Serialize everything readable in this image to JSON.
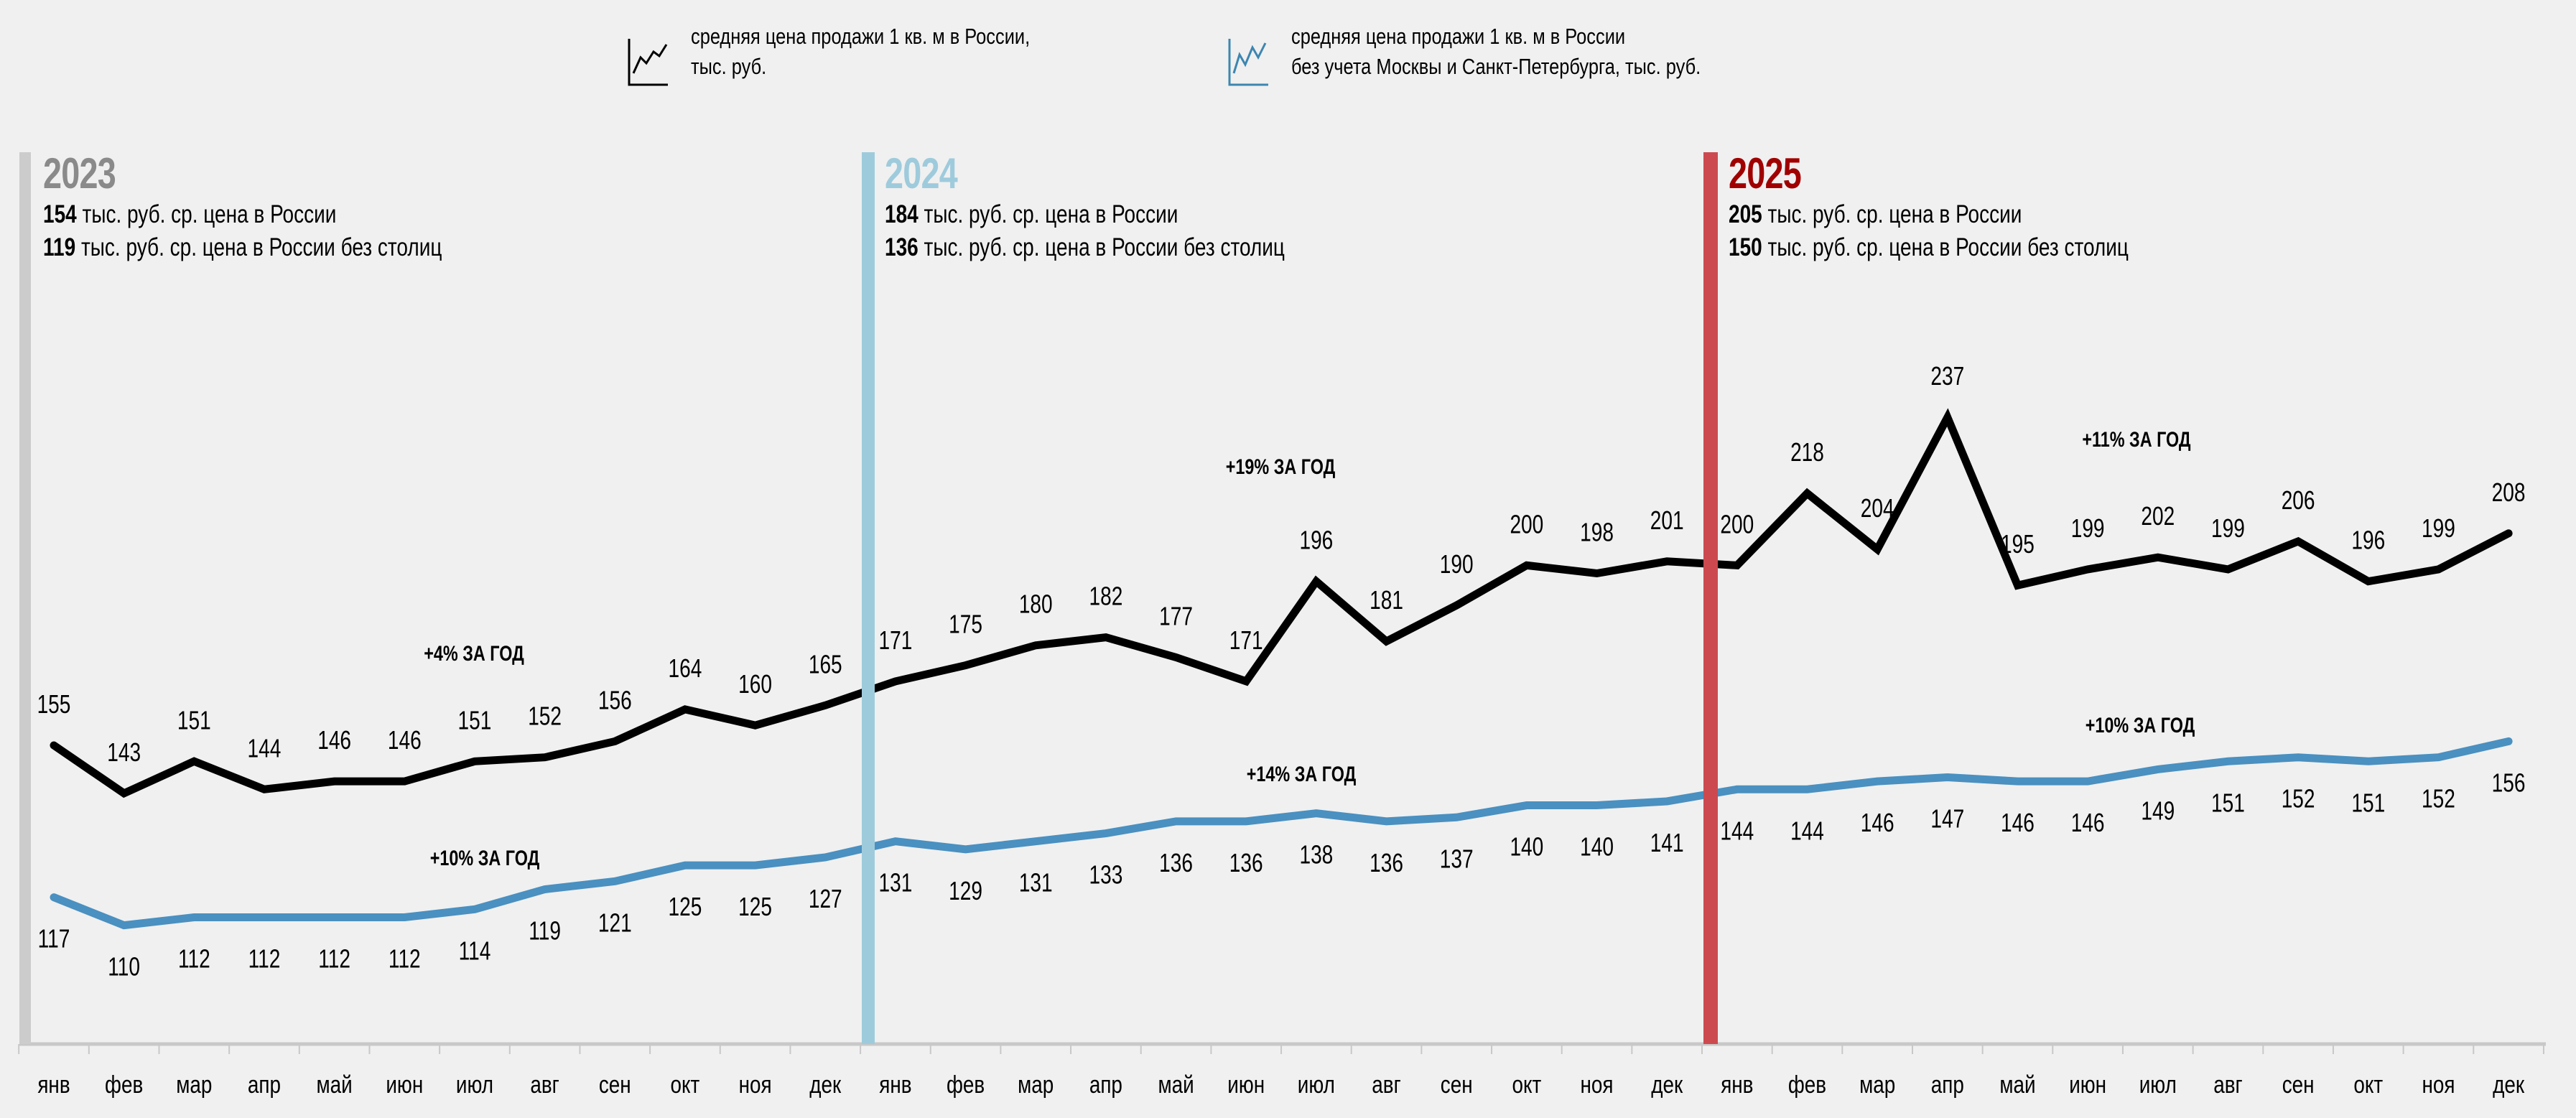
{
  "legend": [
    {
      "line1": "средняя цена продажи 1 кв. м в России,",
      "line2": "тыс. руб.",
      "color": "#000000",
      "icon": "line-chart-icon"
    },
    {
      "line1": "средняя цена продажи 1 кв. м в России",
      "line2": "без учета Москвы и Санкт-Петербурга, тыс. руб.",
      "color": "#4a90c0",
      "icon": "line-chart-icon"
    }
  ],
  "years": [
    {
      "year": "2023",
      "color": "#8a8a8a",
      "bar_color": "#cccccc",
      "avg_russia": "154",
      "avg_russia_text": " тыс. руб. ср. цена в России",
      "avg_no_capitals": "119",
      "avg_no_capitals_text": " тыс. руб. ср. цена в России без столиц"
    },
    {
      "year": "2024",
      "color": "#9ecbdc",
      "bar_color": "#9ecbdc",
      "avg_russia": "184",
      "avg_russia_text": " тыс. руб. ср. цена в России",
      "avg_no_capitals": "136",
      "avg_no_capitals_text": " тыс. руб. ср. цена в России без столиц"
    },
    {
      "year": "2025",
      "color": "#a00000",
      "bar_color": "#cc4a4f",
      "avg_russia": "205",
      "avg_russia_text": " тыс. руб. ср. цена в России",
      "avg_no_capitals": "150",
      "avg_no_capitals_text": " тыс. руб. ср. цена в России без столиц"
    }
  ],
  "chart_data": {
    "type": "line",
    "title": "",
    "xlabel": "",
    "ylabel": "тыс. руб.",
    "grid": false,
    "legend_position": "top-center",
    "x": [
      "янв",
      "фев",
      "мар",
      "апр",
      "май",
      "июн",
      "июл",
      "авг",
      "сен",
      "окт",
      "ноя",
      "дек",
      "янв",
      "фев",
      "мар",
      "апр",
      "май",
      "июн",
      "июл",
      "авг",
      "сен",
      "окт",
      "ноя",
      "дек",
      "янв",
      "фев",
      "мар",
      "апр",
      "май",
      "июн",
      "июл",
      "авг",
      "сен",
      "окт",
      "ноя",
      "дек"
    ],
    "series": [
      {
        "name": "средняя цена продажи 1 кв. м в России, тыс. руб.",
        "color": "#000000",
        "values": [
          155,
          143,
          151,
          144,
          146,
          146,
          151,
          152,
          156,
          164,
          160,
          165,
          171,
          175,
          180,
          182,
          177,
          171,
          196,
          181,
          190,
          200,
          198,
          201,
          200,
          218,
          204,
          237,
          195,
          199,
          202,
          199,
          206,
          196,
          199,
          208
        ]
      },
      {
        "name": "средняя цена продажи 1 кв. м в России без учета Москвы и Санкт-Петербурга, тыс. руб.",
        "color": "#4a90c0",
        "values": [
          117,
          110,
          112,
          112,
          112,
          112,
          114,
          119,
          121,
          125,
          125,
          127,
          131,
          129,
          131,
          133,
          136,
          136,
          138,
          136,
          137,
          140,
          140,
          141,
          144,
          144,
          146,
          147,
          146,
          146,
          149,
          151,
          152,
          151,
          152,
          156
        ]
      }
    ],
    "annotations": [
      {
        "text": "+4% ЗА ГОД",
        "series": 0,
        "year": "2023"
      },
      {
        "text": "+19% ЗА ГОД",
        "series": 0,
        "year": "2024"
      },
      {
        "text": "+11% ЗА ГОД",
        "series": 0,
        "year": "2025"
      },
      {
        "text": "+10% ЗА ГОД",
        "series": 1,
        "year": "2023"
      },
      {
        "text": "+14% ЗА ГОД",
        "series": 1,
        "year": "2024"
      },
      {
        "text": "+10% ЗА ГОД",
        "series": 1,
        "year": "2025"
      }
    ]
  }
}
